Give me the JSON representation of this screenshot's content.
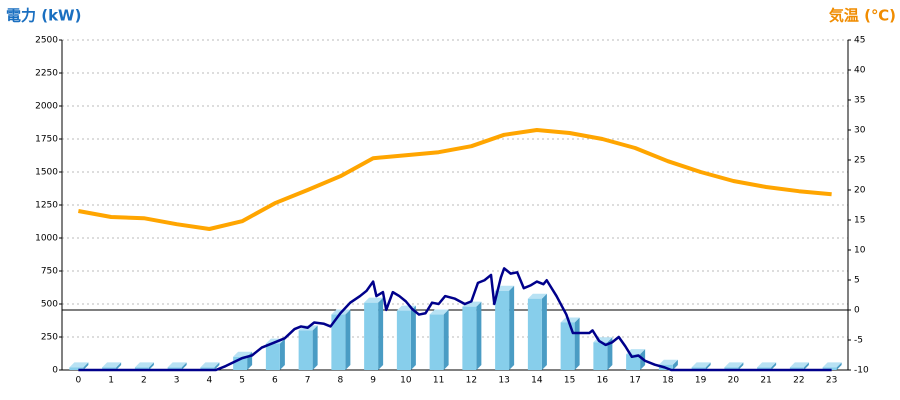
{
  "chart_data": {
    "type": "bar-line",
    "y_label": "電力 (kW)",
    "y2_label": "気温 (℃)",
    "categories": [
      "0",
      "1",
      "2",
      "3",
      "4",
      "5",
      "6",
      "7",
      "8",
      "9",
      "10",
      "11",
      "12",
      "13",
      "14",
      "15",
      "16",
      "17",
      "18",
      "19",
      "20",
      "21",
      "22",
      "23"
    ],
    "ylim": [
      0,
      2500
    ],
    "yticks": [
      0,
      250,
      500,
      750,
      1000,
      1250,
      1500,
      1750,
      2000,
      2250,
      2500
    ],
    "y2lim": [
      -10,
      45
    ],
    "y2ticks": [
      -10,
      -5,
      0,
      5,
      10,
      15,
      20,
      25,
      30,
      35,
      40,
      45
    ],
    "grid": true,
    "reference_line": {
      "axis": "y2",
      "value": 0
    },
    "series": [
      {
        "type": "bar",
        "color": "#87ceeb",
        "values": [
          20,
          20,
          20,
          20,
          20,
          100,
          200,
          300,
          420,
          510,
          450,
          420,
          480,
          600,
          540,
          360,
          210,
          120,
          40,
          20,
          20,
          20,
          20,
          20
        ]
      },
      {
        "type": "line",
        "color": "#00008b",
        "x": [
          0,
          4.2,
          4.5,
          5,
          5.3,
          5.6,
          6,
          6.3,
          6.6,
          6.8,
          7,
          7.2,
          7.5,
          7.7,
          8,
          8.3,
          8.6,
          8.8,
          9,
          9.1,
          9.3,
          9.4,
          9.6,
          9.8,
          10,
          10.2,
          10.4,
          10.6,
          10.8,
          11,
          11.2,
          11.5,
          11.8,
          12,
          12.2,
          12.4,
          12.6,
          12.7,
          12.9,
          13,
          13.2,
          13.4,
          13.6,
          13.8,
          14,
          14.2,
          14.3,
          14.6,
          14.9,
          15.1,
          15.6,
          15.7,
          15.9,
          16.1,
          16.3,
          16.5,
          16.7,
          16.9,
          17.1,
          17.3,
          17.6,
          17.9,
          18.1,
          23
        ],
        "values": [
          0,
          0,
          30,
          90,
          110,
          170,
          210,
          240,
          310,
          330,
          320,
          360,
          350,
          330,
          430,
          510,
          560,
          600,
          670,
          560,
          590,
          455,
          590,
          560,
          520,
          460,
          420,
          430,
          510,
          500,
          560,
          540,
          500,
          520,
          660,
          680,
          720,
          500,
          700,
          770,
          730,
          740,
          620,
          640,
          670,
          650,
          680,
          560,
          420,
          280,
          280,
          300,
          220,
          190,
          210,
          250,
          180,
          100,
          110,
          70,
          40,
          20,
          0,
          0
        ]
      },
      {
        "type": "line",
        "axis": "y2",
        "color": "#ffa500",
        "values": [
          16.5,
          15.5,
          15.3,
          14.3,
          13.5,
          14.8,
          17.8,
          20,
          22.3,
          25.3,
          25.8,
          26.3,
          27.3,
          29.2,
          30,
          29.5,
          28.5,
          27,
          24.8,
          23,
          21.5,
          20.5,
          19.8,
          19.3
        ]
      }
    ]
  }
}
